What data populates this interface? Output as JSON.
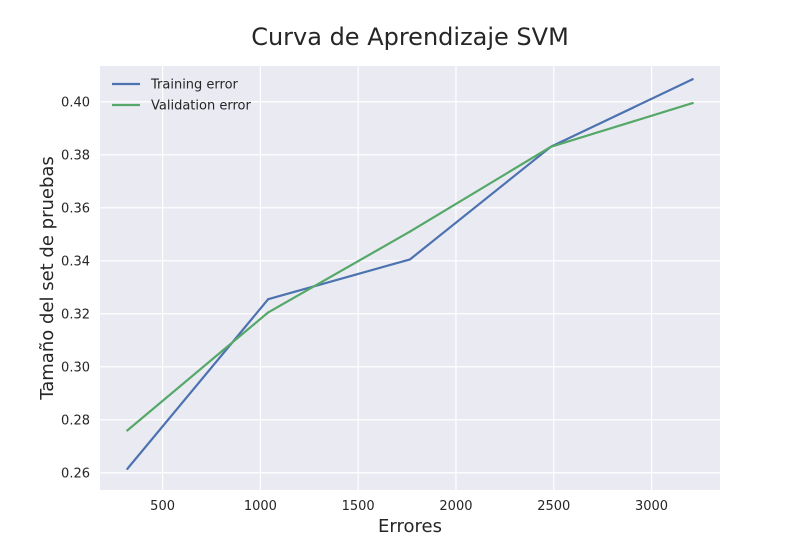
{
  "chart_data": {
    "type": "line",
    "title": "Curva de Aprendizaje SVM",
    "xlabel": "Errores",
    "ylabel": "Tamaño del set de pruebas",
    "xlim": [
      180,
      3350
    ],
    "ylim": [
      0.2535,
      0.4135
    ],
    "x_ticks": [
      500,
      1000,
      1500,
      2000,
      2500,
      3000
    ],
    "x_tick_labels": [
      "500",
      "1000",
      "1500",
      "2000",
      "2500",
      "3000"
    ],
    "y_ticks": [
      0.26,
      0.28,
      0.3,
      0.32,
      0.34,
      0.36,
      0.38,
      0.4
    ],
    "y_tick_labels": [
      "0.26",
      "0.28",
      "0.30",
      "0.32",
      "0.34",
      "0.36",
      "0.38",
      "0.40"
    ],
    "grid": true,
    "legend_position": "top-left",
    "background_color": "#EAEAF2",
    "x": [
      320,
      1040,
      1765,
      2485,
      3210
    ],
    "series": [
      {
        "name": "Training error",
        "color": "#4C72B0",
        "values": [
          0.2615,
          0.3255,
          0.3405,
          0.383,
          0.4085
        ]
      },
      {
        "name": "Validation error",
        "color": "#55A868",
        "values": [
          0.276,
          0.3205,
          0.351,
          0.383,
          0.3995
        ]
      }
    ]
  }
}
